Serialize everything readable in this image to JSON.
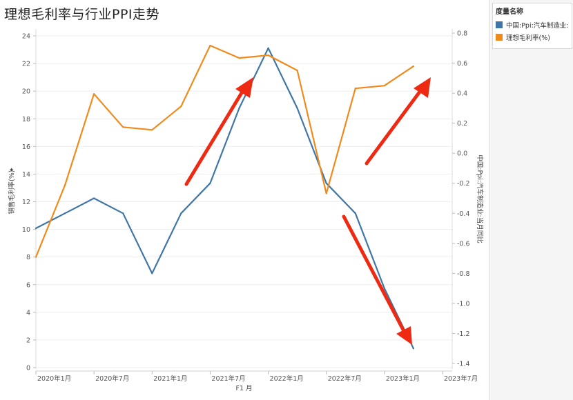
{
  "title": "理想毛利率与行业PPI走势",
  "legend": {
    "title": "度量名称",
    "items": [
      {
        "label": "中国:Ppi:汽车制造业:...",
        "color": "#3f76a8"
      },
      {
        "label": "理想毛利率(%)",
        "color": "#f08a1c"
      }
    ]
  },
  "chart_data": {
    "type": "line",
    "title": "理想毛利率与行业PPI走势",
    "xlabel": "F1 月",
    "x_tick_labels": [
      "2020年1月",
      "2020年7月",
      "2021年1月",
      "2021年7月",
      "2022年1月",
      "2022年7月",
      "2023年1月",
      "2023年7月"
    ],
    "ylabel_left": "销售毛利率(%)",
    "ylabel_right": "中国:Ppi:汽车制造业:当月同比",
    "ylim_left": [
      0,
      24
    ],
    "yticks_left": [
      "0",
      "2",
      "4",
      "6",
      "8",
      "10",
      "12",
      "14",
      "16",
      "18",
      "20",
      "22",
      "24"
    ],
    "ylim_right": [
      -1.4,
      0.8
    ],
    "yticks_right": [
      "-1.4",
      "-1.2",
      "-1.0",
      "-0.8",
      "-0.6",
      "-0.4",
      "-0.2",
      "0.0",
      "0.2",
      "0.4",
      "0.6",
      "0.8"
    ],
    "x_months": [
      0,
      3,
      6,
      9,
      12,
      15,
      18,
      21,
      24,
      27,
      30,
      33,
      36,
      39,
      42
    ],
    "series": [
      {
        "name": "中国:Ppi:汽车制造业:...",
        "axis": "right",
        "color": "#3f76a8",
        "values": [
          -0.5,
          -0.4,
          -0.3,
          -0.4,
          -0.8,
          -0.4,
          -0.2,
          0.3,
          0.7,
          0.3,
          -0.2,
          -0.4,
          -0.9,
          -1.3,
          null
        ]
      },
      {
        "name": "理想毛利率(%)",
        "axis": "left",
        "color": "#f08a1c",
        "values": [
          8.0,
          13.2,
          19.8,
          17.4,
          17.2,
          18.9,
          23.3,
          22.4,
          22.6,
          21.5,
          12.6,
          20.2,
          20.4,
          21.8,
          null
        ]
      }
    ],
    "grid": true
  }
}
